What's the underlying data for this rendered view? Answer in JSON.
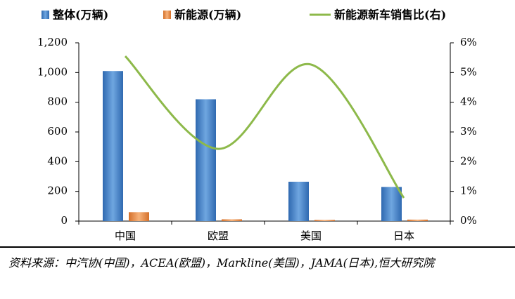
{
  "chart_data": {
    "type": "bar",
    "categories": [
      "中国",
      "欧盟",
      "美国",
      "日本"
    ],
    "series": [
      {
        "name": "整体(万辆)",
        "color": "#4a86c8",
        "values": [
          1010,
          820,
          265,
          230
        ]
      },
      {
        "name": "新能源(万辆)",
        "color": "#e98a3c",
        "values": [
          60,
          12,
          8,
          10
        ]
      },
      {
        "name": "新能源新车销售比(右)",
        "color": "#8db94a",
        "type": "line",
        "axis": "y2",
        "values": [
          5.55,
          2.43,
          5.27,
          0.78
        ]
      }
    ],
    "ylim": [
      0,
      1200
    ],
    "yticks": [
      0,
      200,
      400,
      600,
      800,
      {
        "value": 1000,
        "label": "1,000"
      },
      {
        "value": 1200,
        "label": "1,200"
      }
    ],
    "y2lim": [
      0,
      6
    ],
    "y2ticks": [
      {
        "value": 0,
        "label": "0%"
      },
      {
        "value": 1,
        "label": "1%"
      },
      {
        "value": 2,
        "label": "2%"
      },
      {
        "value": 3,
        "label": "3%"
      },
      {
        "value": 4,
        "label": "4%"
      },
      {
        "value": 5,
        "label": "5%"
      },
      {
        "value": 6,
        "label": "6%"
      }
    ],
    "legend": "top",
    "source": "资料来源：中汽协(中国)，ACEA(欧盟)，Markline(美国)，JAMA(日本),恒大研究院"
  }
}
